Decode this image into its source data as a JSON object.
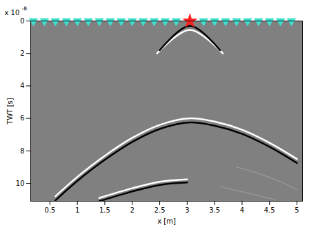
{
  "chart_data": {
    "type": "line",
    "xlabel": "x [m]",
    "ylabel": "TWT [s]",
    "y_multiplier": {
      "base": "x 10",
      "exponent": "-8"
    },
    "xlim": [
      0.15,
      5.1
    ],
    "ylim": [
      0,
      11.1
    ],
    "xticks": [
      0.5,
      1,
      1.5,
      2,
      2.5,
      3,
      3.5,
      4,
      4.5,
      5
    ],
    "yticks": [
      0,
      2,
      4,
      6,
      8,
      10
    ],
    "grid": false,
    "series": [
      {
        "type": "line",
        "color": "#ffffff",
        "line_style": "solid",
        "x": [
          2.45,
          3.05,
          3.65
        ],
        "values": [
          2.0,
          0.55,
          2.0
        ]
      },
      {
        "type": "line",
        "color": "#000000",
        "line_style": "solid",
        "x": [
          2.5,
          3.05,
          3.6
        ],
        "values": [
          1.8,
          0.3,
          1.8
        ]
      },
      {
        "type": "line",
        "color": "#ffffff",
        "line_style": "solid",
        "x": [
          0.6,
          1.0,
          1.5,
          2.0,
          2.5,
          3.05,
          3.5,
          4.0,
          4.5,
          5.0
        ],
        "values": [
          10.8,
          9.6,
          8.3,
          7.2,
          6.4,
          6.0,
          6.2,
          6.7,
          7.5,
          8.5
        ]
      },
      {
        "type": "line",
        "color": "#000000",
        "line_style": "solid",
        "x": [
          0.6,
          1.0,
          1.5,
          2.0,
          2.5,
          3.05,
          3.5,
          4.0,
          4.5,
          5.0
        ],
        "values": [
          11.05,
          9.85,
          8.55,
          7.45,
          6.65,
          6.25,
          6.45,
          6.95,
          7.75,
          8.75
        ]
      },
      {
        "type": "line",
        "color": "#000000",
        "line_style": "solid",
        "x": [
          1.4,
          2.0,
          2.5,
          3.0
        ],
        "values": [
          11.1,
          10.5,
          10.1,
          9.95
        ]
      },
      {
        "type": "line",
        "color": "#ffffff",
        "line_style": "solid",
        "x": [
          1.4,
          2.0,
          2.5,
          3.0
        ],
        "values": [
          10.9,
          10.3,
          9.9,
          9.75
        ]
      },
      {
        "type": "line",
        "color": "#9a9a9a",
        "line_style": "solid",
        "x": [
          3.9,
          4.3,
          4.7,
          5.0
        ],
        "values": [
          9.0,
          9.4,
          9.9,
          10.4
        ]
      },
      {
        "type": "line",
        "color": "#9a9a9a",
        "line_style": "solid",
        "x": [
          3.6,
          4.1,
          4.6
        ],
        "values": [
          10.2,
          10.6,
          11.0
        ]
      },
      {
        "type": "scatter",
        "color": "#40e0d0",
        "marker": "triangle-down",
        "x": [
          0.2,
          0.4,
          0.6,
          0.8,
          1.0,
          1.2,
          1.4,
          1.6,
          1.8,
          2.0,
          2.2,
          2.4,
          2.6,
          2.8,
          3.3,
          3.5,
          3.7,
          3.9,
          4.1,
          4.3,
          4.5,
          4.7,
          4.9
        ],
        "values": [
          0,
          0,
          0,
          0,
          0,
          0,
          0,
          0,
          0,
          0,
          0,
          0,
          0,
          0,
          0,
          0,
          0,
          0,
          0,
          0,
          0,
          0,
          0
        ]
      },
      {
        "type": "scatter",
        "color": "#ff2020",
        "marker": "star",
        "x": [
          3.05
        ],
        "values": [
          0
        ]
      }
    ]
  }
}
